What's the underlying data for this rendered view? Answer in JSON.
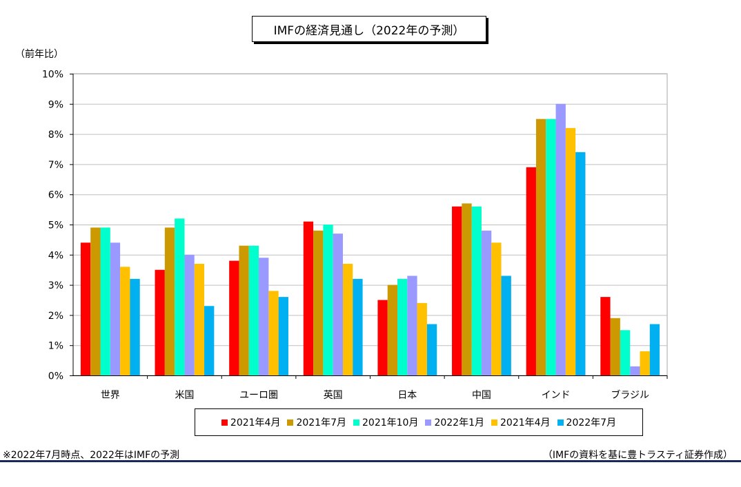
{
  "chart_data": {
    "type": "bar",
    "title": "IMFの経済見通し（2022年の予測）",
    "ylabel": "（前年比）",
    "xlabel": "",
    "ylim": [
      0,
      10
    ],
    "yticks": [
      "0%",
      "1%",
      "2%",
      "3%",
      "4%",
      "5%",
      "6%",
      "7%",
      "8%",
      "9%",
      "10%"
    ],
    "grid": true,
    "legend_position": "bottom",
    "categories": [
      "世界",
      "米国",
      "ユーロ圏",
      "英国",
      "日本",
      "中国",
      "インド",
      "ブラジル"
    ],
    "series": [
      {
        "name": "2021年4月",
        "color": "#ff0000",
        "values": [
          4.4,
          3.5,
          3.8,
          5.1,
          2.5,
          5.6,
          6.9,
          2.6
        ]
      },
      {
        "name": "2021年7月",
        "color": "#cc9900",
        "values": [
          4.9,
          4.9,
          4.3,
          4.8,
          3.0,
          5.7,
          8.5,
          1.9
        ]
      },
      {
        "name": "2021年10月",
        "color": "#00ffcc",
        "values": [
          4.9,
          5.2,
          4.3,
          5.0,
          3.2,
          5.6,
          8.5,
          1.5
        ]
      },
      {
        "name": "2022年1月",
        "color": "#9999ff",
        "values": [
          4.4,
          4.0,
          3.9,
          4.7,
          3.3,
          4.8,
          9.0,
          0.3
        ]
      },
      {
        "name": "2021年4月",
        "color": "#ffc000",
        "values": [
          3.6,
          3.7,
          2.8,
          3.7,
          2.4,
          4.4,
          8.2,
          0.8
        ]
      },
      {
        "name": "2022年7月",
        "color": "#00b0f0",
        "values": [
          3.2,
          2.3,
          2.6,
          3.2,
          1.7,
          3.3,
          7.4,
          1.7
        ]
      }
    ]
  },
  "footnote_left": "※2022年7月時点、2022年はIMFの予測",
  "footnote_right": "（IMFの資料を基に豊トラスティ証券作成）"
}
